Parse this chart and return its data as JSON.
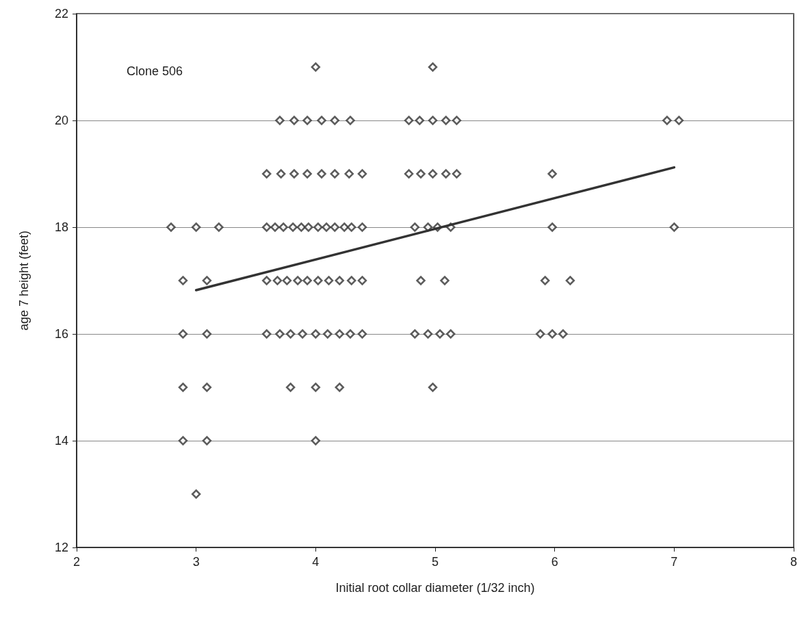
{
  "chart_data": {
    "type": "scatter",
    "xlabel": "Initial root collar diameter (1/32 inch)",
    "ylabel": "age 7 height (feet)",
    "annotations": [
      "Clone 506"
    ],
    "xlim": [
      2,
      8
    ],
    "xticks": [
      2,
      3,
      4,
      5,
      6,
      7,
      8
    ],
    "ylim": [
      12,
      22
    ],
    "yticks": [
      12,
      14,
      16,
      18,
      20,
      22
    ],
    "grid": "y",
    "marker": "diamond",
    "series": [
      {
        "color": "#333333",
        "x": [
          4.0,
          4.98,
          3.7,
          3.82,
          3.93,
          4.05,
          4.16,
          4.29,
          4.78,
          4.87,
          4.98,
          5.09,
          5.18,
          6.94,
          7.04,
          3.59,
          3.71,
          3.82,
          3.93,
          4.05,
          4.16,
          4.28,
          4.39,
          4.78,
          4.88,
          4.98,
          5.09,
          5.18,
          5.98,
          2.79,
          3.0,
          3.19,
          3.59,
          3.66,
          3.73,
          3.81,
          3.88,
          3.94,
          4.02,
          4.09,
          4.16,
          4.24,
          4.3,
          4.39,
          4.83,
          4.94,
          5.02,
          5.13,
          5.98,
          7.0,
          2.89,
          3.09,
          3.59,
          3.68,
          3.76,
          3.85,
          3.93,
          4.02,
          4.11,
          4.2,
          4.3,
          4.39,
          4.88,
          5.08,
          5.92,
          6.13,
          2.89,
          3.09,
          3.59,
          3.7,
          3.79,
          3.89,
          4.0,
          4.1,
          4.2,
          4.29,
          4.39,
          4.83,
          4.94,
          5.04,
          5.13,
          5.88,
          5.98,
          6.07,
          2.89,
          3.09,
          3.79,
          4.0,
          4.2,
          4.98,
          2.89,
          3.09,
          4.0,
          3.0
        ],
        "values": [
          21,
          21,
          20,
          20,
          20,
          20,
          20,
          20,
          20,
          20,
          20,
          20,
          20,
          20,
          20,
          19,
          19,
          19,
          19,
          19,
          19,
          19,
          19,
          19,
          19,
          19,
          19,
          19,
          19,
          18,
          18,
          18,
          18,
          18,
          18,
          18,
          18,
          18,
          18,
          18,
          18,
          18,
          18,
          18,
          18,
          18,
          18,
          18,
          18,
          18,
          17,
          17,
          17,
          17,
          17,
          17,
          17,
          17,
          17,
          17,
          17,
          17,
          17,
          17,
          17,
          17,
          16,
          16,
          16,
          16,
          16,
          16,
          16,
          16,
          16,
          16,
          16,
          16,
          16,
          16,
          16,
          16,
          16,
          16,
          15,
          15,
          15,
          15,
          15,
          15,
          14,
          14,
          14,
          13
        ]
      },
      {
        "type": "line",
        "marker": "none",
        "color": "#333333",
        "x": [
          3,
          7
        ],
        "values": [
          16.82,
          19.12
        ]
      }
    ]
  }
}
